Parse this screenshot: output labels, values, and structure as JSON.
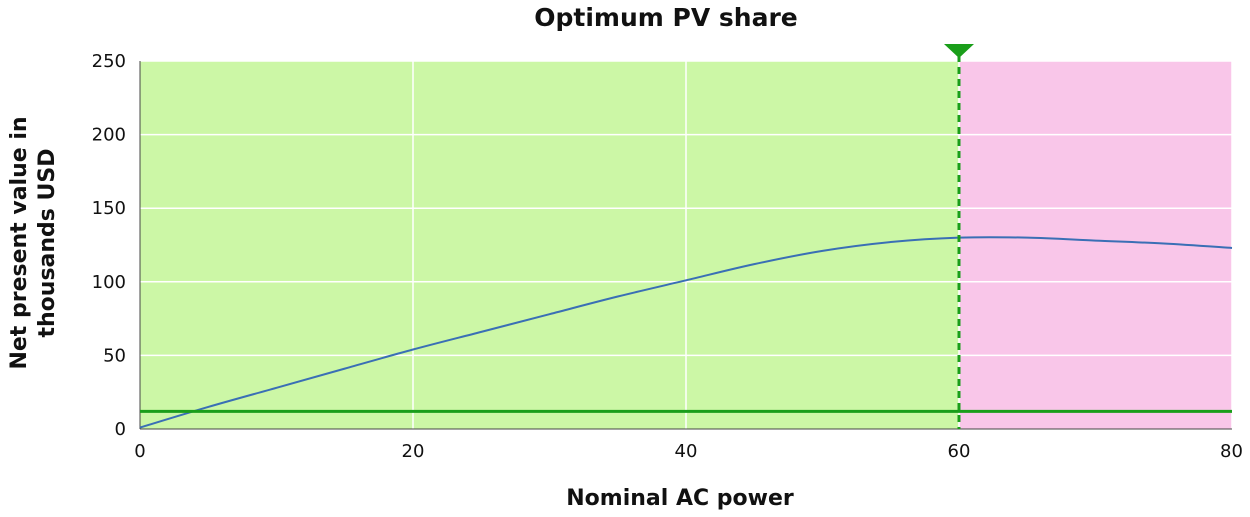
{
  "chart_data": {
    "type": "line",
    "title": "Optimum PV share",
    "xlabel": "Nominal AC power",
    "ylabel_lines": [
      "Net present value in",
      "thousands USD"
    ],
    "xlim": [
      0,
      80
    ],
    "ylim": [
      0,
      250
    ],
    "x_ticks": [
      "0",
      "20",
      "40",
      "60",
      "80"
    ],
    "y_ticks": [
      "0",
      "50",
      "100",
      "150",
      "200",
      "250"
    ],
    "x_tick_values": [
      0,
      20,
      40,
      60,
      80
    ],
    "y_tick_values": [
      0,
      50,
      100,
      150,
      200,
      250
    ],
    "grid": true,
    "series": [
      {
        "color": "#3a6fb5",
        "x": [
          0,
          5,
          10,
          15,
          20,
          25,
          30,
          35,
          40,
          45,
          50,
          55,
          60,
          65,
          70,
          75,
          80
        ],
        "y": [
          1,
          15,
          28,
          41,
          54,
          66,
          78,
          90,
          101,
          112,
          121,
          127,
          130,
          130,
          128,
          126,
          123
        ]
      }
    ],
    "threshold_line": {
      "y": 12,
      "color": "#1a9e1a"
    },
    "optimum_marker": {
      "x": 60,
      "color": "#1a9e1a"
    },
    "regions": [
      {
        "x_from": 0,
        "x_to": 60,
        "color": "#ccf7a6"
      },
      {
        "x_from": 60,
        "x_to": 80,
        "color": "#f9c6e9"
      }
    ],
    "colors": {
      "grid": "#ffffff",
      "axis": "#444444"
    }
  }
}
